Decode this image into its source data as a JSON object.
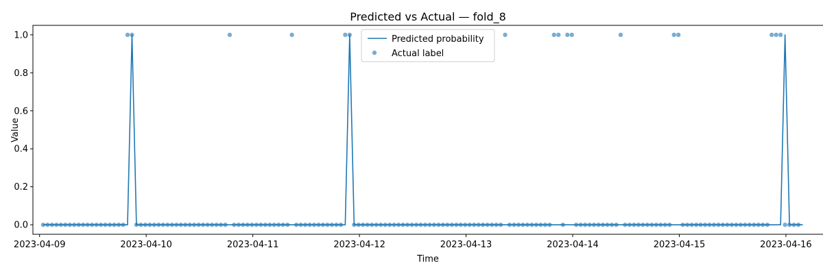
{
  "chart_data": {
    "type": "line",
    "title": "Predicted vs Actual — fold_8",
    "xlabel": "Time",
    "ylabel": "Value",
    "xlim": [
      "2023-04-08T22:30",
      "2023-04-16T08:30"
    ],
    "ylim": [
      -0.05,
      1.05
    ],
    "x_ticks": [
      "2023-04-09",
      "2023-04-10",
      "2023-04-11",
      "2023-04-12",
      "2023-04-13",
      "2023-04-14",
      "2023-04-15",
      "2023-04-16"
    ],
    "y_ticks": [
      "0.0",
      "0.2",
      "0.4",
      "0.6",
      "0.8",
      "1.0"
    ],
    "legend_position": "top-center",
    "grid": false,
    "time_start": "2023-04-09T00:48",
    "time_step_hours": 1,
    "series": [
      {
        "name": "Predicted probability",
        "kind": "line",
        "color": "#1f77b4",
        "values": [
          0,
          0,
          0,
          0,
          0,
          0,
          0,
          0,
          0,
          0,
          0,
          0,
          0,
          0,
          0,
          0,
          0,
          0,
          0,
          0,
          1,
          0,
          0,
          0,
          0,
          0,
          0,
          0,
          0,
          0,
          0,
          0,
          0,
          0,
          0,
          0,
          0,
          0,
          0,
          0,
          0,
          0,
          0,
          0,
          0,
          0,
          0,
          0,
          0,
          0,
          0,
          0,
          0,
          0,
          0,
          0,
          0,
          0,
          0,
          0,
          0,
          0,
          0,
          0,
          0,
          0,
          0,
          0,
          0,
          1,
          0,
          0,
          0,
          0,
          0,
          0,
          0,
          0,
          0,
          0,
          0,
          0,
          0,
          0,
          0,
          0,
          0,
          0,
          0,
          0,
          0,
          0,
          0,
          0,
          0,
          0,
          0,
          0,
          0,
          0,
          0,
          0,
          0,
          0,
          0,
          0,
          0,
          0,
          0,
          0,
          0,
          0,
          0,
          0,
          0,
          0,
          0,
          0,
          0,
          0,
          0,
          0,
          0,
          0,
          0,
          0,
          0,
          0,
          0,
          0,
          0,
          0,
          0,
          0,
          0,
          0,
          0,
          0,
          0,
          0,
          0,
          0,
          0,
          0,
          0,
          0,
          0,
          0,
          0,
          0,
          0,
          0,
          0,
          0,
          0,
          0,
          0,
          0,
          0,
          0,
          0,
          0,
          0,
          0,
          0,
          0,
          0,
          1,
          0,
          0,
          0,
          0
        ]
      },
      {
        "name": "Actual label",
        "kind": "scatter",
        "color": "#1f77b4",
        "values": [
          0,
          0,
          0,
          0,
          0,
          0,
          0,
          0,
          0,
          0,
          0,
          0,
          0,
          0,
          0,
          0,
          0,
          0,
          0,
          1,
          1,
          0,
          0,
          0,
          0,
          0,
          0,
          0,
          0,
          0,
          0,
          0,
          0,
          0,
          0,
          0,
          0,
          0,
          0,
          0,
          0,
          0,
          1,
          0,
          0,
          0,
          0,
          0,
          0,
          0,
          0,
          0,
          0,
          0,
          0,
          0,
          1,
          0,
          0,
          0,
          0,
          0,
          0,
          0,
          0,
          0,
          0,
          0,
          1,
          1,
          0,
          0,
          0,
          0,
          0,
          0,
          0,
          0,
          0,
          0,
          0,
          0,
          0,
          0,
          0,
          0,
          0,
          0,
          0,
          0,
          0,
          0,
          0,
          0,
          0,
          0,
          0,
          0,
          0,
          0,
          0,
          0,
          0,
          0,
          1,
          0,
          0,
          0,
          0,
          0,
          0,
          0,
          0,
          0,
          0,
          1,
          1,
          0,
          1,
          1,
          0,
          0,
          0,
          0,
          0,
          0,
          0,
          0,
          0,
          0,
          1,
          0,
          0,
          0,
          0,
          0,
          0,
          0,
          0,
          0,
          0,
          0,
          1,
          1,
          0,
          0,
          0,
          0,
          0,
          0,
          0,
          0,
          0,
          0,
          0,
          0,
          0,
          0,
          0,
          0,
          0,
          0,
          0,
          0,
          1,
          1,
          1,
          0,
          0,
          0,
          0
        ]
      }
    ]
  }
}
